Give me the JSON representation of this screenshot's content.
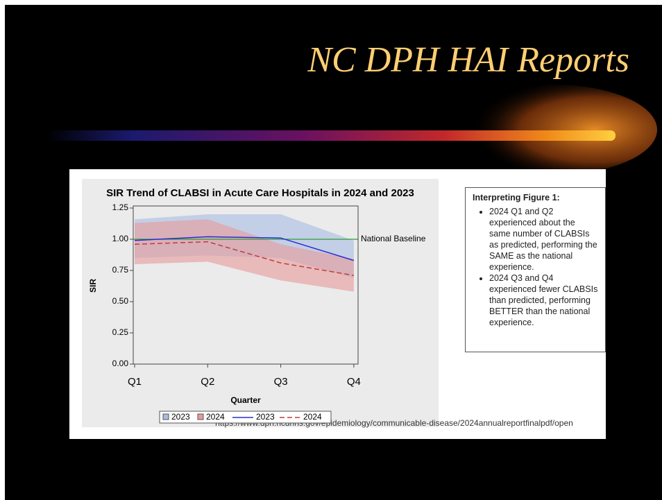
{
  "title": "NC DPH HAI Reports",
  "chart_data": {
    "type": "line",
    "title": "SIR Trend of CLABSI in Acute Care Hospitals in 2024 and 2023",
    "categories": [
      "Q1",
      "Q2",
      "Q3",
      "Q4"
    ],
    "xlabel": "Quarter",
    "ylabel": "SIR",
    "ylim": [
      0,
      1.25
    ],
    "yticks": [
      {
        "value": 0,
        "label": "0.00"
      },
      0.25,
      {
        "value": 0.5,
        "label": "0.50"
      },
      0.75,
      {
        "value": 1,
        "label": "1.00"
      },
      1.25
    ],
    "bands": [
      {
        "name": "2023",
        "color": "#a7bce3",
        "lower": [
          0.85,
          0.87,
          0.85,
          0.69
        ],
        "upper": [
          1.16,
          1.2,
          1.2,
          0.99
        ]
      },
      {
        "name": "2024",
        "color": "#e79a9a",
        "lower": [
          0.8,
          0.82,
          0.67,
          0.58
        ],
        "upper": [
          1.13,
          1.16,
          0.96,
          0.84
        ]
      }
    ],
    "series": [
      {
        "name": "2023",
        "color": "#2b2bd0",
        "dash": false,
        "values": [
          0.99,
          1.02,
          1.01,
          0.83
        ]
      },
      {
        "name": "2024",
        "color": "#c23b3b",
        "dash": true,
        "values": [
          0.96,
          0.98,
          0.81,
          0.71
        ]
      }
    ],
    "reference_line": {
      "value": 1,
      "label": "National Baseline",
      "color": "#2e9a3a"
    }
  },
  "notes": {
    "heading": "Interpreting Figure 1:",
    "bullets": [
      "2024 Q1 and Q2 experienced about the same number of CLABSIs as predicted, performing the SAME as the national experience.",
      "2024 Q3 and Q4 experienced fewer CLABSIs than predicted, performing BETTER than the national experience."
    ]
  },
  "source": "https://www.dph.ncdhhs.gov/epidemiology/communicable-disease/2024annualreportfinalpdf/open"
}
